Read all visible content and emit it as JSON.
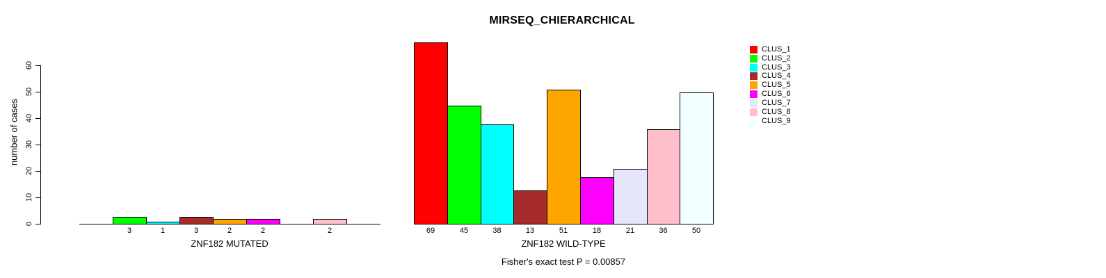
{
  "title": "MIRSEQ_CHIERARCHICAL",
  "chart_data": {
    "type": "bar",
    "title": "MIRSEQ_CHIERARCHICAL",
    "xlabel": "",
    "ylabel": "number of cases",
    "ylim": [
      0,
      60
    ],
    "yticks": [
      0,
      10,
      20,
      30,
      40,
      50,
      60
    ],
    "grid": false,
    "legend_position": "topright",
    "categories": [
      "CLUS_1",
      "CLUS_2",
      "CLUS_3",
      "CLUS_4",
      "CLUS_5",
      "CLUS_6",
      "CLUS_7",
      "CLUS_8",
      "CLUS_9"
    ],
    "colors": [
      "#FF0000",
      "#00FF00",
      "#00FFFF",
      "#A52A2A",
      "#FFA500",
      "#FF00FF",
      "#E6E6FA",
      "#FFC0CB",
      "#F0FFFF"
    ],
    "series": [
      {
        "name": "ZNF182 MUTATED",
        "values": [
          0,
          3,
          1,
          3,
          2,
          2,
          0,
          2,
          0
        ]
      },
      {
        "name": "ZNF182 WILD-TYPE",
        "values": [
          69,
          45,
          38,
          13,
          51,
          18,
          21,
          36,
          50
        ]
      }
    ],
    "bar_value_labels_visible": true,
    "annotation": "Fisher's exact test P = 0.00857"
  }
}
